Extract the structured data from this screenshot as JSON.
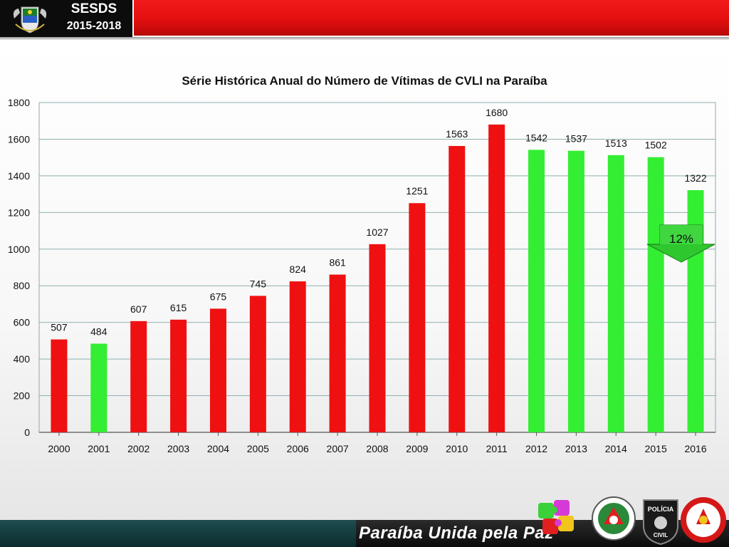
{
  "header": {
    "title": "SESDS",
    "years": "2015-2018"
  },
  "footer": {
    "slogan": "Paraíba  Unida pela Paz"
  },
  "colors": {
    "red": "#ef1111",
    "green": "#33ee33",
    "arrow": "#2ec82e"
  },
  "annotation": {
    "label": "12%"
  },
  "chart_data": {
    "type": "bar",
    "title": "Série Histórica Anual do Número de Vítimas de CVLI na Paraíba",
    "xlabel": "",
    "ylabel": "",
    "ylim": [
      0,
      1800
    ],
    "yticks": [
      0,
      200,
      400,
      600,
      800,
      1000,
      1200,
      1400,
      1600,
      1800
    ],
    "grid": true,
    "categories": [
      "2000",
      "2001",
      "2002",
      "2003",
      "2004",
      "2005",
      "2006",
      "2007",
      "2008",
      "2009",
      "2010",
      "2011",
      "2012",
      "2013",
      "2014",
      "2015",
      "2016"
    ],
    "values": [
      507,
      484,
      607,
      615,
      675,
      745,
      824,
      861,
      1027,
      1251,
      1563,
      1680,
      1542,
      1537,
      1513,
      1502,
      1322
    ],
    "bar_colors": [
      "red",
      "green",
      "red",
      "red",
      "red",
      "red",
      "red",
      "red",
      "red",
      "red",
      "red",
      "red",
      "green",
      "green",
      "green",
      "green",
      "green"
    ]
  }
}
